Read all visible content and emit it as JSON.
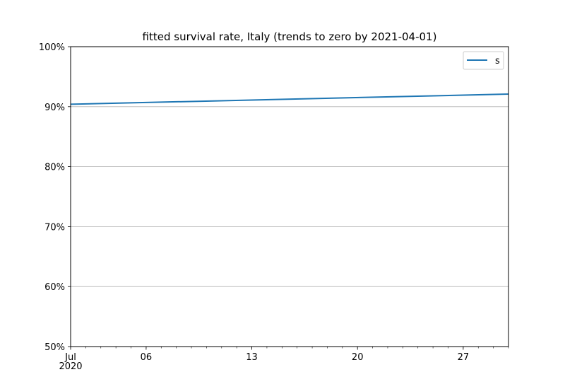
{
  "chart_data": {
    "type": "line",
    "title": "fitted survival rate, Italy (trends to zero by 2021-04-01)",
    "xlabel": "",
    "ylabel": "",
    "x_range": [
      "2020-07-01",
      "2020-07-30"
    ],
    "ylim": [
      0.5,
      1.0
    ],
    "y_ticks": [
      0.5,
      0.6,
      0.7,
      0.8,
      0.9,
      1.0
    ],
    "y_tick_labels": [
      "50%",
      "60%",
      "70%",
      "80%",
      "90%",
      "100%"
    ],
    "x_ticks": [
      "2020-07-01",
      "2020-07-06",
      "2020-07-13",
      "2020-07-20",
      "2020-07-27"
    ],
    "x_tick_labels": [
      "Jul\n2020",
      "06",
      "13",
      "20",
      "27"
    ],
    "grid": "y",
    "legend": "top-right",
    "series": [
      {
        "name": "s",
        "color": "#1f77b4",
        "x": [
          "2020-07-01",
          "2020-07-30"
        ],
        "y": [
          0.904,
          0.921
        ]
      }
    ]
  }
}
